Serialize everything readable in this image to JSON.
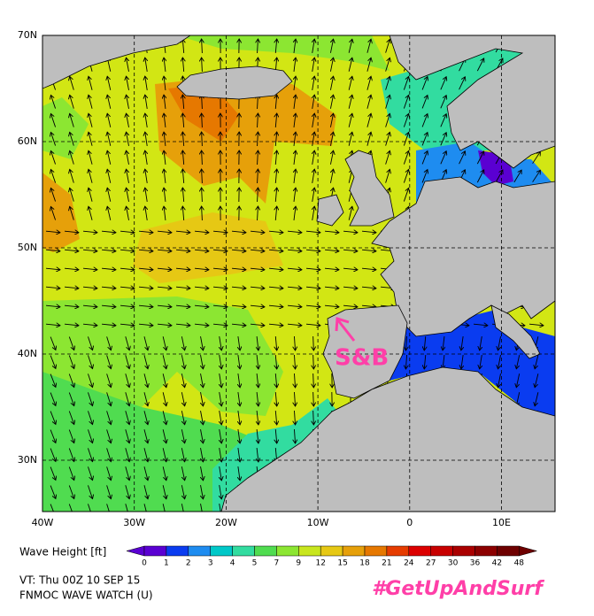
{
  "map": {
    "lat_labels": [
      "70N",
      "60N",
      "50N",
      "40N",
      "30N"
    ],
    "lon_labels": [
      "40W",
      "30W",
      "20W",
      "10W",
      "0",
      "10E"
    ],
    "marker": "S&B"
  },
  "legend": {
    "title": "Wave Height [ft]",
    "levels": [
      0,
      1,
      2,
      3,
      4,
      5,
      7,
      9,
      12,
      15,
      18,
      21,
      24,
      27,
      30,
      36,
      42,
      48
    ],
    "colors": [
      "#5a00d2",
      "#0a3cf0",
      "#1e8cf0",
      "#00c8c8",
      "#32dca0",
      "#50dc50",
      "#8ce632",
      "#c8e61e",
      "#e6c814",
      "#e6a00a",
      "#e67800",
      "#e63c00",
      "#dc0000",
      "#c80000",
      "#aa0000",
      "#8c0000",
      "#6e0000"
    ]
  },
  "footer": {
    "valid_time": "VT: Thu 00Z 10 SEP 15",
    "model": "FNMOC WAVE WATCH (U)"
  },
  "hashtag": "#GetUpAndSurf"
}
